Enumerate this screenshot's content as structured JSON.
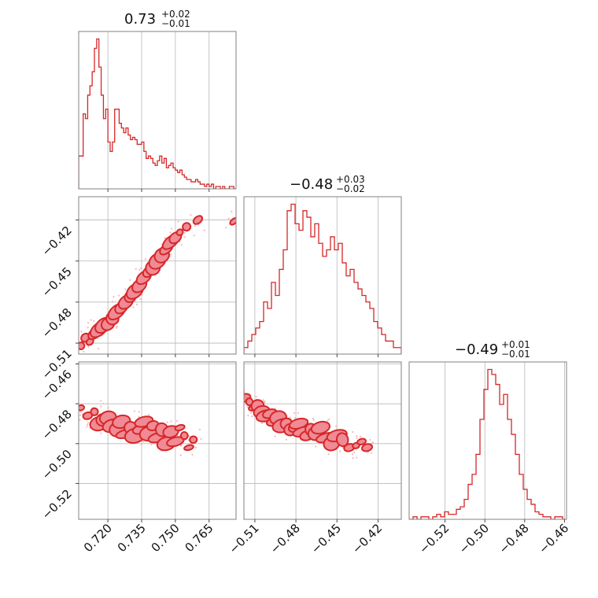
{
  "chart_data": {
    "type": "corner",
    "color": "#d62728",
    "parameters": [
      {
        "title": "0.73",
        "plus": "+0.02",
        "minus": "−0.01",
        "range": [
          0.707,
          0.777
        ],
        "ticks": [
          0.72,
          0.735,
          0.75,
          0.765
        ],
        "tick_labels": [
          "0.720",
          "0.735",
          "0.750",
          "0.765"
        ]
      },
      {
        "title": "−0.48",
        "plus": "+0.03",
        "minus": "−0.02",
        "range": [
          -0.518,
          -0.403
        ],
        "ticks": [
          -0.51,
          -0.48,
          -0.45,
          -0.42
        ],
        "tick_labels": [
          "−0.51",
          "−0.48",
          "−0.45",
          "−0.42"
        ]
      },
      {
        "title": "−0.49",
        "plus": "+0.01",
        "minus": "−0.01",
        "range": [
          -0.538,
          -0.459
        ],
        "ticks": [
          -0.52,
          -0.5,
          -0.48,
          -0.46
        ],
        "tick_labels": [
          "−0.52",
          "−0.50",
          "−0.48",
          "−0.46"
        ]
      }
    ],
    "histograms": [
      {
        "edges_start": 0.707,
        "edges_end": 0.777,
        "counts": [
          14,
          14,
          32,
          30,
          40,
          44,
          50,
          60,
          64,
          52,
          40,
          30,
          34,
          20,
          16,
          20,
          34,
          34,
          28,
          26,
          24,
          26,
          23,
          21,
          22,
          21,
          19,
          19,
          20,
          16,
          13,
          14,
          13,
          11,
          10,
          12,
          14,
          11,
          13,
          9,
          10,
          11,
          9,
          8,
          7,
          8,
          6,
          5,
          4,
          4,
          3,
          3,
          4,
          3,
          2,
          2,
          1,
          2,
          1,
          2,
          0,
          1,
          1,
          0,
          1,
          0,
          0,
          1,
          1,
          0
        ]
      },
      {
        "edges_start": -0.518,
        "edges_end": -0.403,
        "counts": [
          1,
          2,
          3,
          4,
          5,
          8,
          7,
          11,
          9,
          13,
          16,
          22,
          23,
          20,
          19,
          22,
          21,
          18,
          20,
          17,
          15,
          16,
          18,
          16,
          17,
          14,
          12,
          13,
          11,
          10,
          9,
          8,
          7,
          5,
          4,
          3,
          2,
          2,
          1,
          1
        ]
      },
      {
        "edges_start": -0.538,
        "edges_end": -0.459,
        "counts": [
          0,
          1,
          0,
          1,
          1,
          0,
          1,
          2,
          1,
          3,
          2,
          2,
          4,
          5,
          8,
          14,
          18,
          26,
          40,
          52,
          60,
          58,
          54,
          46,
          50,
          40,
          34,
          26,
          18,
          12,
          8,
          6,
          3,
          2,
          1,
          1,
          0,
          1,
          1,
          0
        ]
      }
    ],
    "pairs": [
      {
        "x_param": 0,
        "y_param": 1,
        "points": [
          [
            0.708,
            -0.512
          ],
          [
            0.71,
            -0.506
          ],
          [
            0.712,
            -0.509
          ],
          [
            0.714,
            -0.503
          ],
          [
            0.716,
            -0.5
          ],
          [
            0.718,
            -0.497
          ],
          [
            0.72,
            -0.496
          ],
          [
            0.722,
            -0.492
          ],
          [
            0.724,
            -0.487
          ],
          [
            0.726,
            -0.484
          ],
          [
            0.728,
            -0.48
          ],
          [
            0.73,
            -0.476
          ],
          [
            0.732,
            -0.472
          ],
          [
            0.734,
            -0.468
          ],
          [
            0.736,
            -0.462
          ],
          [
            0.738,
            -0.458
          ],
          [
            0.74,
            -0.455
          ],
          [
            0.742,
            -0.45
          ],
          [
            0.744,
            -0.446
          ],
          [
            0.746,
            -0.441
          ],
          [
            0.748,
            -0.436
          ],
          [
            0.75,
            -0.433
          ],
          [
            0.752,
            -0.429
          ],
          [
            0.755,
            -0.425
          ],
          [
            0.76,
            -0.42
          ],
          [
            0.776,
            -0.421
          ]
        ]
      },
      {
        "x_param": 0,
        "y_param": 2,
        "points": [
          [
            0.708,
            -0.482
          ],
          [
            0.711,
            -0.486
          ],
          [
            0.714,
            -0.484
          ],
          [
            0.716,
            -0.49
          ],
          [
            0.718,
            -0.488
          ],
          [
            0.72,
            -0.487
          ],
          [
            0.722,
            -0.491
          ],
          [
            0.724,
            -0.493
          ],
          [
            0.726,
            -0.489
          ],
          [
            0.728,
            -0.495
          ],
          [
            0.73,
            -0.492
          ],
          [
            0.732,
            -0.496
          ],
          [
            0.734,
            -0.493
          ],
          [
            0.736,
            -0.489
          ],
          [
            0.738,
            -0.495
          ],
          [
            0.74,
            -0.491
          ],
          [
            0.742,
            -0.497
          ],
          [
            0.744,
            -0.493
          ],
          [
            0.746,
            -0.5
          ],
          [
            0.748,
            -0.494
          ],
          [
            0.75,
            -0.499
          ],
          [
            0.752,
            -0.492
          ],
          [
            0.754,
            -0.496
          ],
          [
            0.756,
            -0.502
          ],
          [
            0.758,
            -0.498
          ]
        ]
      },
      {
        "x_param": 1,
        "y_param": 2,
        "points": [
          [
            -0.517,
            -0.477
          ],
          [
            -0.514,
            -0.479
          ],
          [
            -0.511,
            -0.482
          ],
          [
            -0.508,
            -0.481
          ],
          [
            -0.505,
            -0.484
          ],
          [
            -0.502,
            -0.486
          ],
          [
            -0.499,
            -0.485
          ],
          [
            -0.496,
            -0.489
          ],
          [
            -0.493,
            -0.487
          ],
          [
            -0.49,
            -0.491
          ],
          [
            -0.487,
            -0.49
          ],
          [
            -0.484,
            -0.493
          ],
          [
            -0.481,
            -0.492
          ],
          [
            -0.478,
            -0.49
          ],
          [
            -0.475,
            -0.494
          ],
          [
            -0.472,
            -0.496
          ],
          [
            -0.469,
            -0.493
          ],
          [
            -0.466,
            -0.495
          ],
          [
            -0.462,
            -0.492
          ],
          [
            -0.458,
            -0.497
          ],
          [
            -0.454,
            -0.5
          ],
          [
            -0.45,
            -0.496
          ],
          [
            -0.446,
            -0.498
          ],
          [
            -0.441,
            -0.502
          ],
          [
            -0.436,
            -0.501
          ],
          [
            -0.432,
            -0.499
          ],
          [
            -0.428,
            -0.502
          ]
        ]
      }
    ]
  }
}
